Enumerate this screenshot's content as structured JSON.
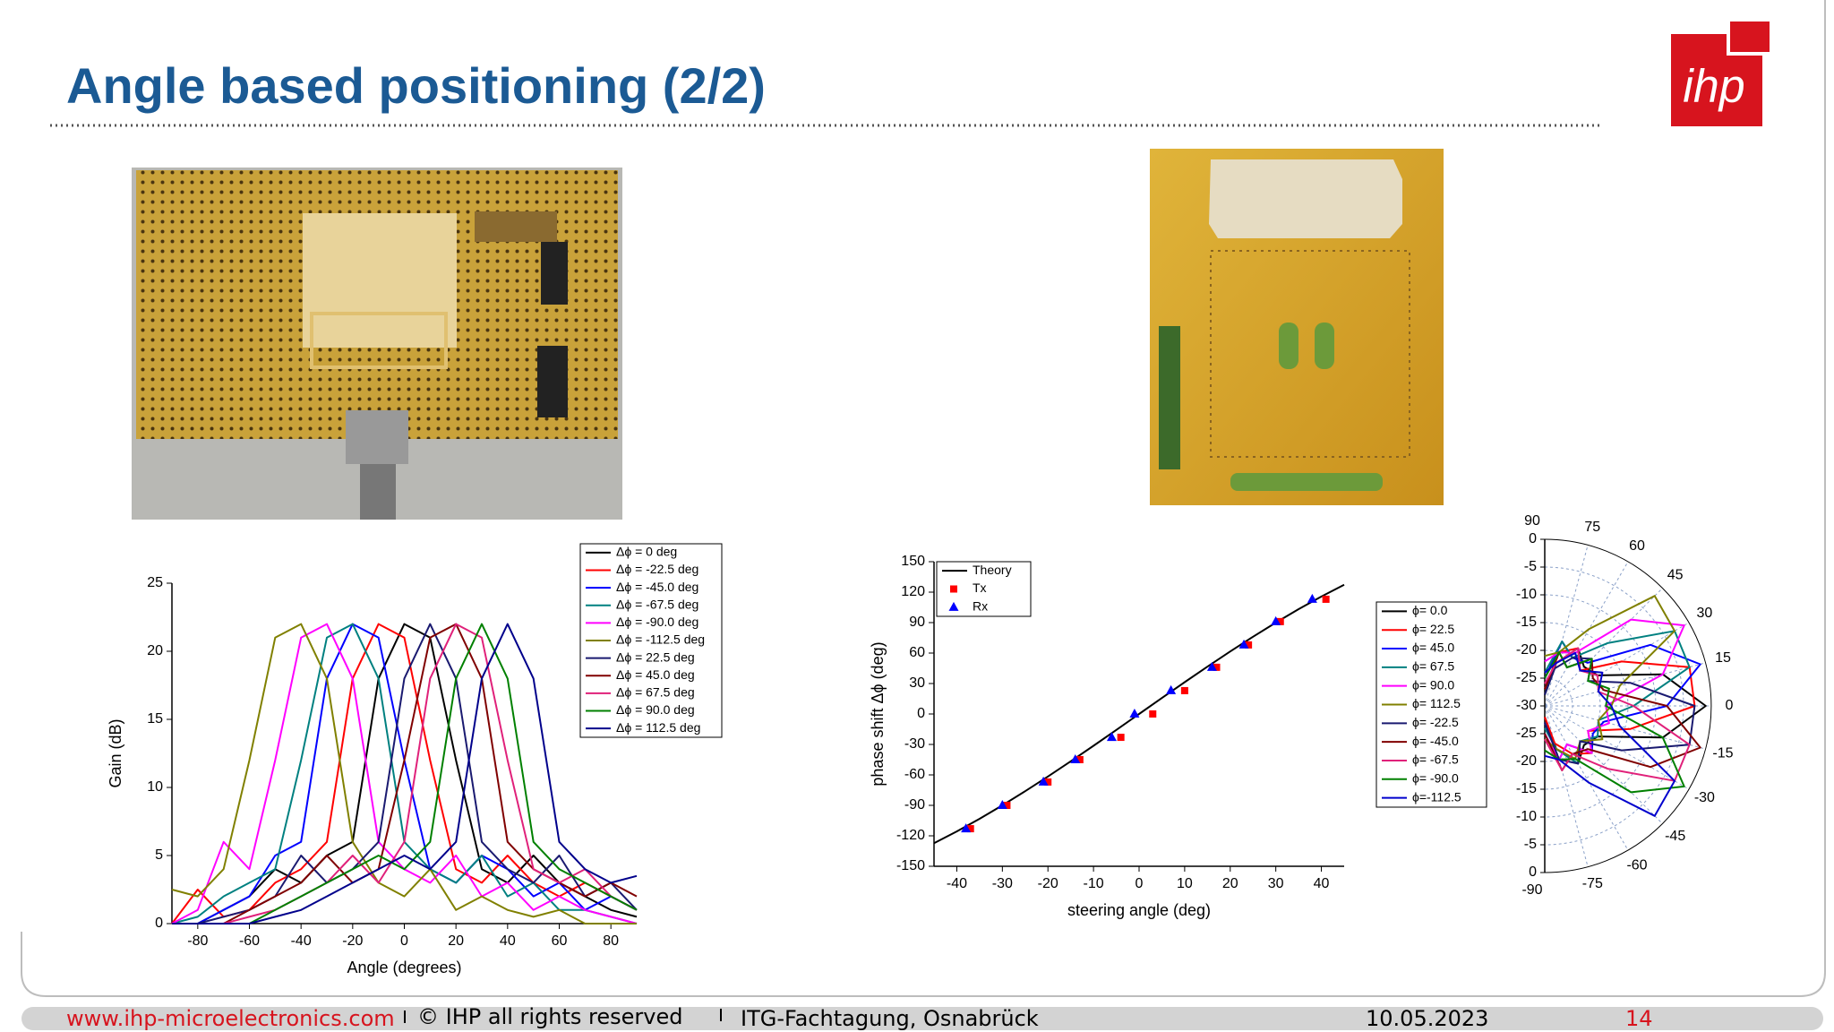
{
  "header": {
    "title": "Angle based positioning (2/2)",
    "logo": "ihp"
  },
  "footer": {
    "url": "www.ihp-microelectronics.com",
    "copyright": "© IHP all rights reserved",
    "event": "ITG-Fachtagung, Osnabrück",
    "date": "10.05.2023",
    "page": "14"
  },
  "chart_data": [
    {
      "type": "line",
      "xlabel": "Angle (degrees)",
      "ylabel": "Gain (dB)",
      "x": [
        -90,
        -80,
        -70,
        -60,
        -50,
        -40,
        -30,
        -20,
        -10,
        0,
        10,
        20,
        30,
        40,
        50,
        60,
        70,
        80,
        90
      ],
      "xlim": [
        -90,
        90
      ],
      "xticks": [
        -80,
        -60,
        -40,
        -20,
        0,
        20,
        40,
        60,
        80
      ],
      "ylim": [
        0,
        25
      ],
      "yticks": [
        0,
        5,
        10,
        15,
        20,
        25
      ],
      "legend": "top-right",
      "series": [
        {
          "name": "Δϕ = 0 deg",
          "color": "#000000",
          "values": [
            0,
            0,
            1,
            2,
            4,
            3,
            5,
            6,
            18,
            22,
            21,
            12,
            4,
            3,
            5,
            3,
            2,
            1,
            0.5
          ]
        },
        {
          "name": "Δϕ = -22.5 deg",
          "color": "#ff0000",
          "values": [
            0,
            2.5,
            0.5,
            1,
            3,
            4,
            6,
            18,
            22,
            21,
            12,
            4,
            3,
            5,
            3,
            2,
            3,
            2,
            1
          ]
        },
        {
          "name": "Δϕ = -45.0 deg",
          "color": "#0000ff",
          "values": [
            0,
            0,
            1,
            2,
            5,
            6,
            18,
            22,
            21,
            12,
            4,
            3,
            5,
            4,
            2,
            3,
            1,
            2,
            1
          ]
        },
        {
          "name": "Δϕ = -67.5 deg",
          "color": "#008080",
          "values": [
            0,
            0.5,
            2,
            3,
            4,
            12,
            21,
            22,
            18,
            6,
            4,
            3,
            5,
            2,
            3,
            1,
            1,
            0.5,
            0
          ]
        },
        {
          "name": "Δϕ = -90.0 deg",
          "color": "#ff00ff",
          "values": [
            0,
            1,
            6,
            4,
            12,
            21,
            22,
            18,
            6,
            4,
            3,
            5,
            2,
            3,
            1,
            2,
            1,
            0.5,
            0
          ]
        },
        {
          "name": "Δϕ = -112.5 deg",
          "color": "#808000",
          "values": [
            2.5,
            2,
            4,
            12,
            21,
            22,
            18,
            6,
            3,
            2,
            4,
            1,
            2,
            1,
            0.5,
            1,
            0,
            0,
            0
          ]
        },
        {
          "name": "Δϕ = 22.5 deg",
          "color": "#1a1a70",
          "values": [
            0,
            0,
            0.5,
            1,
            2,
            5,
            3,
            4,
            6,
            18,
            22,
            18,
            6,
            4,
            3,
            5,
            2,
            3,
            1
          ]
        },
        {
          "name": "Δϕ = 45.0 deg",
          "color": "#800000",
          "values": [
            0,
            0,
            0,
            1,
            2,
            3,
            5,
            3,
            4,
            12,
            21,
            22,
            18,
            6,
            4,
            3,
            2,
            3,
            2
          ]
        },
        {
          "name": "Δϕ = 67.5 deg",
          "color": "#e0217a",
          "values": [
            0,
            0,
            0,
            0.5,
            1,
            2,
            3,
            5,
            3,
            6,
            18,
            22,
            21,
            12,
            4,
            3,
            4,
            2,
            1
          ]
        },
        {
          "name": "Δϕ = 90.0 deg",
          "color": "#008000",
          "values": [
            0,
            0,
            0,
            0,
            1,
            2,
            3,
            4,
            5,
            4,
            6,
            18,
            22,
            18,
            6,
            4,
            3,
            2,
            1
          ]
        },
        {
          "name": "Δϕ = 112.5 deg",
          "color": "#00008b",
          "values": [
            0,
            0,
            0,
            0,
            0.5,
            1,
            2,
            3,
            4,
            5,
            4,
            6,
            18,
            22,
            18,
            6,
            4,
            3,
            3.5
          ]
        }
      ]
    },
    {
      "type": "scatter",
      "xlabel": "steering angle (deg)",
      "ylabel": "phase shift Δϕ (deg)",
      "xlim": [
        -45,
        45
      ],
      "xticks": [
        -40,
        -30,
        -20,
        -10,
        0,
        10,
        20,
        30,
        40
      ],
      "ylim": [
        -150,
        150
      ],
      "yticks": [
        -150,
        -120,
        -90,
        -60,
        -30,
        0,
        30,
        60,
        90,
        120,
        150
      ],
      "legend": "top-left",
      "series": [
        {
          "name": "Theory",
          "color": "#000000",
          "mode": "line",
          "x": [
            -45,
            -40,
            -35,
            -30,
            -25,
            -20,
            -15,
            -10,
            -5,
            0,
            5,
            10,
            15,
            20,
            25,
            30,
            35,
            40,
            45
          ],
          "values": [
            -127.3,
            -115.7,
            -103.2,
            -90,
            -76.1,
            -61.6,
            -46.6,
            -31.3,
            -15.7,
            0,
            15.7,
            31.3,
            46.6,
            61.6,
            76.1,
            90,
            103.2,
            115.7,
            127.3
          ]
        },
        {
          "name": "Tx",
          "color": "#ff0000",
          "mode": "markers",
          "marker": "square",
          "x": [
            -37,
            -29,
            -20,
            -13,
            -4,
            3,
            10,
            17,
            24,
            31,
            41
          ],
          "values": [
            -113,
            -90,
            -67,
            -45,
            -23,
            0,
            23,
            46,
            68,
            91,
            113
          ]
        },
        {
          "name": "Rx",
          "color": "#0000ff",
          "mode": "markers",
          "marker": "triangle",
          "x": [
            -38,
            -30,
            -21,
            -14,
            -6,
            -1,
            7,
            16,
            23,
            30,
            38
          ],
          "values": [
            -113,
            -90,
            -67,
            -45,
            -23,
            0,
            23,
            46,
            68,
            91,
            113
          ]
        }
      ]
    },
    {
      "type": "polar",
      "theta": [
        -90,
        -75,
        -60,
        -45,
        -30,
        -15,
        0,
        15,
        30,
        45,
        60,
        75,
        90
      ],
      "thetaticks": [
        90,
        75,
        60,
        45,
        30,
        15,
        0,
        -15,
        -30,
        -45,
        -60,
        -75,
        -90
      ],
      "rlim": [
        -30,
        0
      ],
      "rticks": [
        0,
        -5,
        -10,
        -15,
        -20,
        -25,
        -30
      ],
      "legend": "left",
      "series": [
        {
          "name": "ϕ= 0.0",
          "color": "#000000",
          "values": [
            -28,
            -22,
            -18,
            -20,
            -19,
            -8,
            -1,
            -8,
            -19,
            -20,
            -18,
            -22,
            -28
          ]
        },
        {
          "name": "ϕ= 22.5",
          "color": "#ff0000",
          "values": [
            -28,
            -23,
            -20,
            -18,
            -21,
            -14,
            -3,
            -3,
            -14,
            -21,
            -18,
            -20,
            -27
          ]
        },
        {
          "name": "ϕ= 45.0",
          "color": "#0000ff",
          "values": [
            -27,
            -20,
            -22,
            -18,
            -20,
            -19,
            -8,
            -1,
            -8,
            -19,
            -20,
            -18,
            -25
          ]
        },
        {
          "name": "ϕ= 67.5",
          "color": "#008080",
          "values": [
            -26,
            -22,
            -18,
            -21,
            -19,
            -20,
            -14,
            -3,
            -3,
            -14,
            -20,
            -18,
            -24
          ]
        },
        {
          "name": "ϕ= 90.0",
          "color": "#ff00ff",
          "values": [
            -25,
            -20,
            -22,
            -18,
            -21,
            -18,
            -19,
            -8,
            -1,
            -8,
            -19,
            -20,
            -22
          ]
        },
        {
          "name": "ϕ= 112.5",
          "color": "#808000",
          "values": [
            -24,
            -22,
            -19,
            -21,
            -18,
            -20,
            -18,
            -16,
            -3,
            -2,
            -14,
            -20,
            -21
          ]
        },
        {
          "name": "ϕ= -22.5",
          "color": "#1a1a70",
          "values": [
            -27,
            -20,
            -18,
            -21,
            -14,
            -3,
            -3,
            -14,
            -21,
            -18,
            -20,
            -23,
            -28
          ]
        },
        {
          "name": "ϕ= -45.0",
          "color": "#800000",
          "values": [
            -25,
            -18,
            -20,
            -19,
            -8,
            -1,
            -8,
            -19,
            -20,
            -18,
            -22,
            -20,
            -27
          ]
        },
        {
          "name": "ϕ= -67.5",
          "color": "#e0217a",
          "values": [
            -24,
            -18,
            -20,
            -14,
            -3,
            -3,
            -14,
            -20,
            -19,
            -21,
            -18,
            -22,
            -26
          ]
        },
        {
          "name": "ϕ= -90.0",
          "color": "#008000",
          "values": [
            -22,
            -20,
            -19,
            -8,
            -1,
            -8,
            -19,
            -18,
            -21,
            -18,
            -22,
            -20,
            -25
          ]
        },
        {
          "name": "ϕ=-112.5",
          "color": "#0000cd",
          "values": [
            -21,
            -20,
            -14,
            -2,
            -3,
            -16,
            -18,
            -20,
            -18,
            -21,
            -19,
            -22,
            -24
          ]
        }
      ]
    }
  ]
}
